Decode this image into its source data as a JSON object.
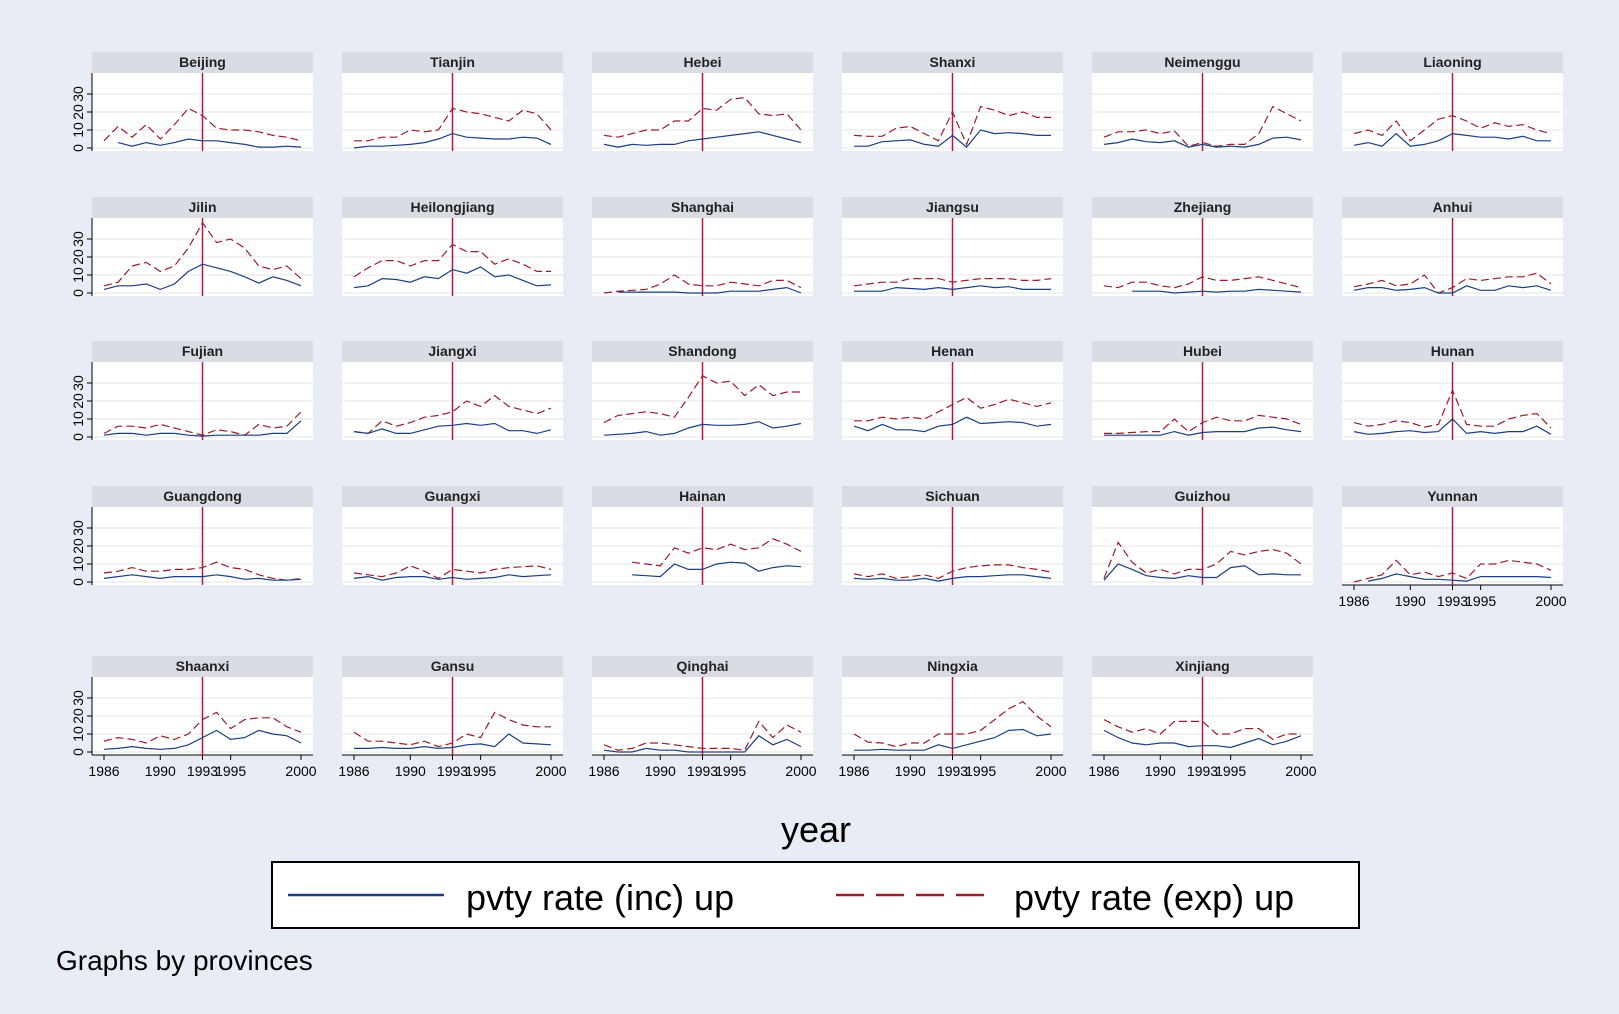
{
  "chart_data": {
    "type": "line",
    "panel_label_by": "provinces",
    "xlabel": "year",
    "ylabel": "",
    "xlim": [
      1986,
      2000
    ],
    "ylim": [
      0,
      40
    ],
    "x_ticks": [
      1986,
      1990,
      1993,
      1995,
      2000
    ],
    "y_ticks": [
      0,
      10,
      20,
      30
    ],
    "x_tick_labels": [
      "1986",
      "1990",
      "1993",
      "1995",
      "2000"
    ],
    "y_tick_labels": [
      "0",
      "10",
      "20",
      "30"
    ],
    "reference_line_x": 1993,
    "grid": true,
    "legend_position": "bottom",
    "note": "Graphs by provinces",
    "years": [
      1986,
      1987,
      1988,
      1989,
      1990,
      1991,
      1992,
      1993,
      1994,
      1995,
      1996,
      1997,
      1998,
      1999,
      2000
    ],
    "series": [
      {
        "key": "inc",
        "name": "pvty rate (inc) up",
        "color": "#1a3f82",
        "dash": "solid"
      },
      {
        "key": "exp",
        "name": "pvty rate (exp) up",
        "color": "#9b1c2a",
        "dash": "dash"
      }
    ],
    "colors": {
      "background": "#e8ecf4",
      "panel": "#ffffff",
      "header": "#d9dce3",
      "refline": "#c4103a",
      "grid": "#e6e6e6"
    },
    "panels": [
      {
        "name": "Beijing",
        "inc": [
          null,
          3,
          1,
          3,
          1.5,
          3,
          5,
          4,
          4,
          3,
          2,
          0.5,
          0.5,
          1,
          0.5
        ],
        "exp": [
          4,
          12,
          6,
          13,
          5,
          13,
          22,
          18,
          11,
          10,
          10,
          9,
          7,
          6,
          4
        ]
      },
      {
        "name": "Tianjin",
        "inc": [
          0,
          1,
          1,
          1.5,
          2,
          3,
          5,
          8,
          6,
          5.5,
          5,
          5,
          6,
          5.5,
          2
        ],
        "exp": [
          4,
          4,
          6,
          6,
          10,
          9,
          10,
          22,
          20,
          19,
          17,
          15,
          21,
          19,
          10
        ]
      },
      {
        "name": "Hebei",
        "inc": [
          2,
          0.5,
          2,
          1.5,
          2,
          2,
          4,
          5,
          6,
          7,
          8,
          9,
          7,
          5,
          3
        ],
        "exp": [
          7,
          6,
          8,
          10,
          10,
          15,
          15,
          22,
          21,
          27,
          28,
          19,
          18,
          19,
          10
        ]
      },
      {
        "name": "Shanxi",
        "inc": [
          1,
          1,
          3.5,
          4,
          4.5,
          2,
          1,
          7,
          0.5,
          10,
          8,
          8.5,
          8,
          7,
          7
        ],
        "exp": [
          7,
          6.5,
          6.5,
          11,
          12,
          8,
          4,
          20,
          2,
          23,
          21,
          18,
          20,
          17,
          17
        ]
      },
      {
        "name": "Neimenggu",
        "inc": [
          2,
          3,
          5,
          3.5,
          3,
          4,
          0.5,
          2,
          0.5,
          1,
          0.5,
          2,
          5.5,
          6,
          4.5
        ],
        "exp": [
          6,
          9,
          9,
          10,
          8,
          9.5,
          1,
          3,
          1,
          2,
          2,
          8,
          23,
          19,
          15
        ]
      },
      {
        "name": "Liaoning",
        "inc": [
          1.5,
          3,
          1,
          8,
          1,
          2,
          4,
          8,
          7,
          6,
          6,
          5,
          6.5,
          4,
          4
        ],
        "exp": [
          8,
          10,
          7,
          15,
          4,
          10,
          16,
          18,
          15,
          11,
          14,
          12,
          13,
          10,
          8
        ]
      },
      {
        "name": "Jilin",
        "inc": [
          2,
          4,
          4,
          5,
          2,
          5,
          12,
          16,
          14,
          12,
          9,
          5.5,
          9,
          7,
          4
        ],
        "exp": [
          4,
          6,
          15,
          17,
          12,
          15,
          25,
          39,
          28,
          30,
          25,
          15,
          13,
          15,
          8
        ]
      },
      {
        "name": "Heilongjiang",
        "inc": [
          3,
          4,
          8,
          7.5,
          6,
          9,
          8,
          13,
          11,
          14.5,
          9,
          10,
          7,
          4,
          4.5
        ],
        "exp": [
          9,
          14,
          18,
          18,
          15,
          18,
          18,
          27,
          23,
          23,
          16,
          19,
          16,
          12,
          12
        ]
      },
      {
        "name": "Shanghai",
        "inc": [
          null,
          0.5,
          0.5,
          0.5,
          0.5,
          0.5,
          0,
          0,
          0,
          1,
          1,
          1,
          2,
          3,
          0
        ],
        "exp": [
          0,
          1,
          1.5,
          2,
          5,
          10,
          5,
          4,
          4,
          6,
          5,
          4,
          7,
          7,
          3
        ]
      },
      {
        "name": "Jiangsu",
        "inc": [
          1,
          1,
          1,
          3,
          2.5,
          2,
          3,
          2,
          3,
          4,
          3,
          3.5,
          2,
          2,
          2
        ],
        "exp": [
          4,
          5,
          6,
          6,
          8,
          8,
          8,
          6,
          7,
          8,
          8,
          8,
          7,
          7,
          8
        ]
      },
      {
        "name": "Zhejiang",
        "inc": [
          null,
          null,
          1,
          1,
          1,
          0,
          0.5,
          1,
          0.5,
          1,
          1,
          2,
          1.5,
          1,
          0.5
        ],
        "exp": [
          4,
          3,
          6,
          6,
          4,
          3,
          5,
          9,
          7,
          7,
          8,
          9,
          7,
          5,
          3
        ]
      },
      {
        "name": "Anhui",
        "inc": [
          1.5,
          3,
          3,
          1.5,
          2,
          3,
          0,
          0,
          4,
          1.5,
          1.5,
          4,
          3,
          4,
          1.5
        ],
        "exp": [
          3.5,
          5,
          7,
          4,
          5,
          10,
          0,
          3,
          8,
          7,
          8,
          9,
          9,
          11,
          5
        ]
      },
      {
        "name": "Fujian",
        "inc": [
          1,
          2,
          2,
          1,
          2,
          2,
          1,
          0.5,
          1,
          1,
          1,
          1,
          2,
          2,
          9
        ],
        "exp": [
          2,
          6,
          6,
          5,
          7,
          5,
          3,
          1,
          4,
          3,
          1,
          7,
          5,
          6,
          14
        ]
      },
      {
        "name": "Jiangxi",
        "inc": [
          3,
          2,
          4.5,
          2,
          2,
          4,
          6,
          6.5,
          7.5,
          6.5,
          7.5,
          3.5,
          3.5,
          2,
          4
        ],
        "exp": [
          3,
          2,
          9,
          6,
          8,
          11,
          12,
          14,
          20,
          17,
          23,
          17,
          15,
          13,
          16
        ]
      },
      {
        "name": "Shandong",
        "inc": [
          1,
          1.5,
          2,
          3,
          1,
          2,
          5,
          7,
          6.5,
          6.5,
          7,
          8.5,
          5,
          6,
          7.5
        ],
        "exp": [
          8,
          12,
          13,
          14,
          13,
          11,
          22,
          34,
          30,
          31,
          23,
          29,
          23,
          25,
          25
        ]
      },
      {
        "name": "Henan",
        "inc": [
          6,
          3.5,
          7,
          4,
          4,
          3,
          6,
          7,
          11,
          7.5,
          8,
          8.5,
          8,
          6,
          7
        ],
        "exp": [
          9,
          9,
          11,
          10,
          11,
          10,
          14,
          18,
          22,
          16,
          18,
          21,
          19,
          17,
          19
        ]
      },
      {
        "name": "Hubei",
        "inc": [
          1,
          1,
          1,
          1,
          1,
          3,
          1,
          2.5,
          3,
          3,
          3,
          5,
          5.5,
          4,
          3
        ],
        "exp": [
          2,
          2,
          2.5,
          3,
          3,
          10,
          3,
          8,
          11,
          9,
          9,
          12,
          11,
          10,
          7
        ]
      },
      {
        "name": "Hunan",
        "inc": [
          3,
          1.5,
          2,
          3,
          3.5,
          2.5,
          3,
          10,
          2,
          3,
          2,
          3,
          3,
          6,
          1.5
        ],
        "exp": [
          8,
          6,
          7,
          9,
          8,
          5.5,
          7,
          26,
          7,
          6,
          6,
          10,
          12,
          13,
          5
        ]
      },
      {
        "name": "Guangdong",
        "inc": [
          2,
          3,
          4,
          3,
          2,
          3,
          3,
          3,
          4,
          3,
          1.5,
          2,
          1,
          1,
          1.5
        ],
        "exp": [
          5,
          6,
          8,
          6,
          6,
          7,
          7,
          8,
          11,
          8,
          7,
          4,
          2,
          1,
          2
        ]
      },
      {
        "name": "Guangxi",
        "inc": [
          2,
          3,
          1,
          2.5,
          3,
          3,
          1.5,
          2.5,
          1.5,
          2,
          2.5,
          4,
          3,
          3.5,
          4
        ],
        "exp": [
          5,
          4,
          3,
          5,
          9,
          6,
          2,
          7,
          6,
          5,
          7,
          8,
          8.5,
          9,
          7
        ]
      },
      {
        "name": "Hainan",
        "inc": [
          null,
          null,
          4,
          3.5,
          3,
          10,
          7,
          7,
          10,
          11,
          10.5,
          6,
          8,
          9,
          8.5
        ],
        "exp": [
          null,
          null,
          11,
          10,
          9,
          19,
          16,
          19,
          18,
          21,
          18,
          19,
          24,
          21,
          17
        ]
      },
      {
        "name": "Sichuan",
        "inc": [
          2,
          1.5,
          2,
          1,
          1,
          2,
          0.5,
          2,
          3,
          3,
          3.5,
          4,
          4,
          3,
          2
        ],
        "exp": [
          4.5,
          3,
          4.5,
          2,
          3,
          4,
          2,
          6,
          8,
          9,
          9.5,
          9.5,
          8,
          7,
          5.5
        ]
      },
      {
        "name": "Guizhou",
        "inc": [
          1,
          10,
          7,
          3.5,
          2.5,
          2,
          3.5,
          2.5,
          2.5,
          8,
          9,
          4,
          4.5,
          4,
          4
        ],
        "exp": [
          2,
          22,
          11,
          5,
          7,
          4.5,
          7,
          7,
          10,
          17,
          15,
          17,
          18,
          16,
          10
        ]
      },
      {
        "name": "Yunnan",
        "inc": [
          null,
          0.5,
          2,
          4.5,
          3,
          1.5,
          1.5,
          1,
          0.5,
          3,
          3,
          3,
          3,
          3,
          2.5
        ],
        "exp": [
          0,
          2,
          4,
          12,
          4,
          5.5,
          3,
          5,
          2,
          10,
          10,
          12,
          11,
          10,
          6.5
        ]
      },
      {
        "name": "Shaanxi",
        "inc": [
          1.5,
          2,
          3,
          2,
          1.5,
          2,
          4,
          8,
          12,
          7,
          8,
          12,
          10,
          9,
          5
        ],
        "exp": [
          6,
          8,
          7,
          5,
          9,
          7,
          10,
          18,
          22,
          13,
          18,
          19,
          19,
          14,
          11
        ]
      },
      {
        "name": "Gansu",
        "inc": [
          2,
          2,
          2.5,
          2,
          2,
          3,
          2,
          2.5,
          4,
          4.5,
          3,
          10,
          5,
          4.5,
          4
        ],
        "exp": [
          11,
          6,
          6,
          5,
          4,
          6,
          3,
          5,
          10,
          8,
          22,
          18,
          15,
          14,
          14
        ]
      },
      {
        "name": "Qinghai",
        "inc": [
          1,
          0,
          0,
          2,
          1,
          1,
          0,
          0,
          0,
          0,
          0,
          9,
          4,
          7,
          3
        ],
        "exp": [
          4,
          1,
          2,
          5,
          5,
          4,
          3,
          2,
          2,
          2,
          1,
          17,
          8,
          15,
          11
        ]
      },
      {
        "name": "Ningxia",
        "inc": [
          1,
          1,
          1.5,
          1,
          1,
          1,
          4,
          2,
          4,
          6,
          8,
          12,
          12.5,
          9,
          10
        ],
        "exp": [
          10,
          5.5,
          5,
          3,
          5,
          5,
          10,
          10,
          10,
          12,
          18,
          24,
          28,
          20,
          14
        ]
      },
      {
        "name": "Xinjiang",
        "inc": [
          12,
          8,
          5,
          4,
          5,
          5,
          3,
          3.5,
          3.5,
          2.5,
          5,
          7.5,
          4,
          6,
          9
        ],
        "exp": [
          18,
          14,
          11,
          13,
          10,
          17,
          17,
          17,
          10,
          10,
          13,
          13,
          7,
          10,
          10
        ]
      }
    ]
  }
}
